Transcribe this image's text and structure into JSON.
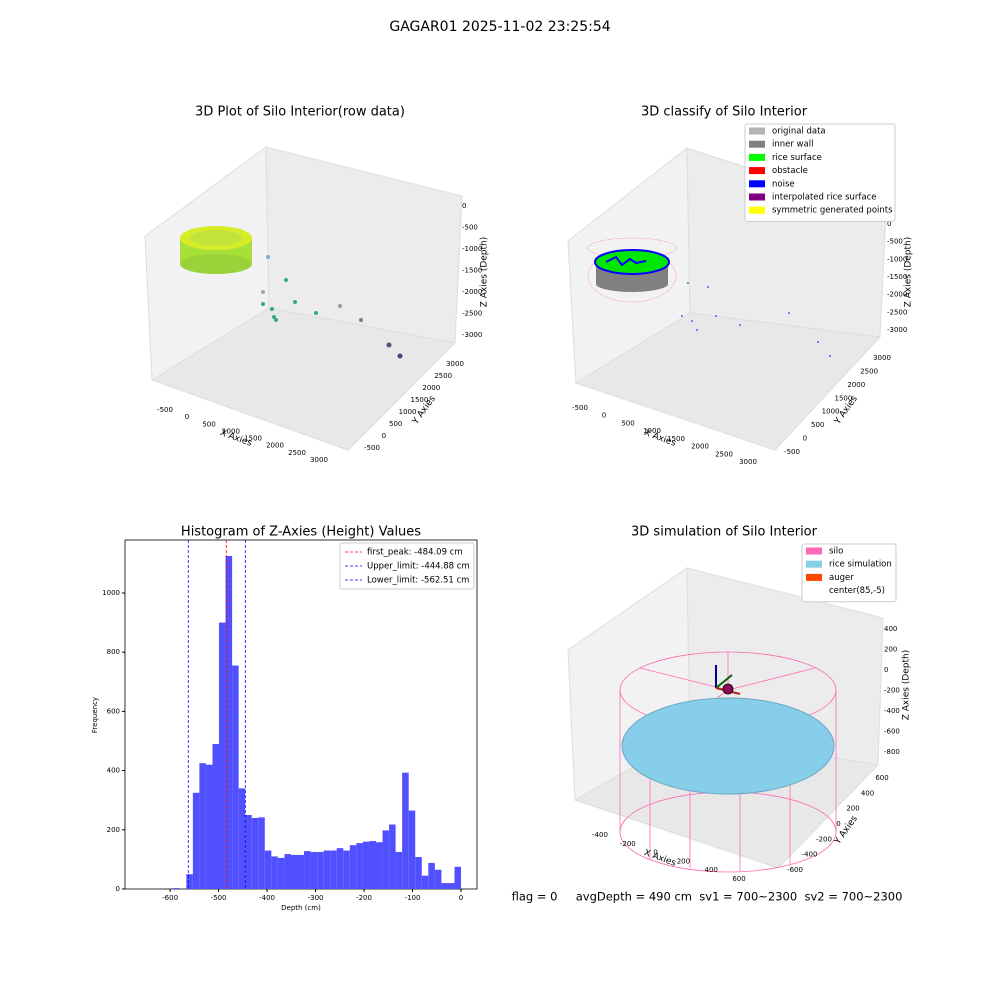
{
  "title": "GAGAR01 2025-11-02 23:25:54",
  "footer": "flag = 0     avgDepth = 490 cm  sv1 = 700~2300  sv2 = 700~2300",
  "chart_data": [
    {
      "type": "scatter3d",
      "title": "3D Plot of Silo Interior(row data)",
      "xlabel": "X Axies",
      "ylabel": "Y Axies",
      "zlabel": "Z Axies (Depth)",
      "xticks": [
        -500,
        0,
        500,
        1000,
        1500,
        2000,
        2500,
        3000
      ],
      "yticks": [
        -500,
        0,
        500,
        1000,
        1500,
        2000,
        2500,
        3000
      ],
      "zticks": [
        0,
        -500,
        -1000,
        -1500,
        -2000,
        -2500,
        -3000
      ]
    },
    {
      "type": "scatter3d",
      "title": "3D classify of Silo Interior",
      "xlabel": "X Axies",
      "ylabel": "Y Axies",
      "zlabel": "Z Axies (Depth)",
      "xticks": [
        -500,
        0,
        500,
        1000,
        1500,
        2000,
        2500,
        3000
      ],
      "yticks": [
        -500,
        0,
        500,
        1000,
        1500,
        2000,
        2500,
        3000
      ],
      "zticks": [
        0,
        -500,
        -1000,
        -1500,
        -2000,
        -2500,
        -3000
      ],
      "legend": [
        {
          "name": "original data",
          "color": "#b3b3b3"
        },
        {
          "name": "inner wall",
          "color": "#808080"
        },
        {
          "name": "rice surface",
          "color": "#00ff00"
        },
        {
          "name": "obstacle",
          "color": "#ff0000"
        },
        {
          "name": "noise",
          "color": "#0000ff"
        },
        {
          "name": "interpolated rice surface",
          "color": "#800080"
        },
        {
          "name": "symmetric generated points",
          "color": "#ffff00"
        }
      ]
    },
    {
      "type": "histogram",
      "title": "Histogram of Z-Axies (Height) Values",
      "xlabel": "Depth (cm)",
      "ylabel": "Frequency",
      "color": "#5050ff",
      "bins": [
        -607.0,
        -593.5,
        -580.0,
        -566.5,
        -553.0,
        -539.6,
        -526.1,
        -512.6,
        -499.1,
        -485.6,
        -472.1,
        -458.6,
        -445.1,
        -431.6,
        -418.1,
        -404.7,
        -391.2,
        -377.7,
        -364.2,
        -350.7,
        -337.2,
        -323.7,
        -310.2,
        -296.7,
        -283.2,
        -269.8,
        -256.3,
        -242.8,
        -229.3,
        -215.8,
        -202.3,
        -188.8,
        -175.3,
        -161.8,
        -148.3,
        -134.9,
        -121.4,
        -107.9,
        -94.4,
        -80.9,
        -67.4,
        -53.9,
        -40.4,
        -26.9,
        -13.4,
        0.0
      ],
      "values": [
        0,
        3,
        0,
        50,
        325,
        425,
        420,
        490,
        900,
        1125,
        755,
        340,
        250,
        240,
        242,
        130,
        110,
        105,
        118,
        115,
        115,
        128,
        125,
        125,
        130,
        130,
        138,
        130,
        148,
        155,
        160,
        162,
        158,
        198,
        218,
        125,
        393,
        265,
        108,
        45,
        88,
        65,
        20,
        20,
        75
      ],
      "xlim": [
        -693,
        33
      ],
      "ylim": [
        0,
        1179
      ],
      "xticks": [
        -600,
        -500,
        -400,
        -300,
        -200,
        -100,
        0
      ],
      "yticks": [
        0,
        200,
        400,
        600,
        800,
        1000
      ],
      "vlines": [
        {
          "name": "first_peak: -484.09 cm",
          "value": -484.09,
          "color": "#ff0000"
        },
        {
          "name": "Upper_limit: -444.88 cm",
          "value": -444.88,
          "color": "#0000ff"
        },
        {
          "name": "Lower_limit: -562.51 cm",
          "value": -562.51,
          "color": "#0000ff"
        }
      ]
    },
    {
      "type": "surface3d",
      "title": "3D simulation of Silo Interior",
      "xlabel": "X Axies",
      "ylabel": "Y Axies",
      "zlabel": "Z Axies (Depth)",
      "xticks": [
        -400,
        -200,
        0,
        200,
        400,
        600
      ],
      "yticks": [
        -600,
        -400,
        -200,
        0,
        200,
        400,
        600
      ],
      "zticks": [
        400,
        200,
        0,
        -200,
        -400,
        -600,
        -800
      ],
      "legend": [
        {
          "name": "silo",
          "color": "#ff69b4"
        },
        {
          "name": "rice simulation",
          "color": "#87ceeb"
        },
        {
          "name": "auger",
          "color": "#ff4500"
        },
        {
          "name": "center(85,-5)"
        }
      ]
    }
  ]
}
